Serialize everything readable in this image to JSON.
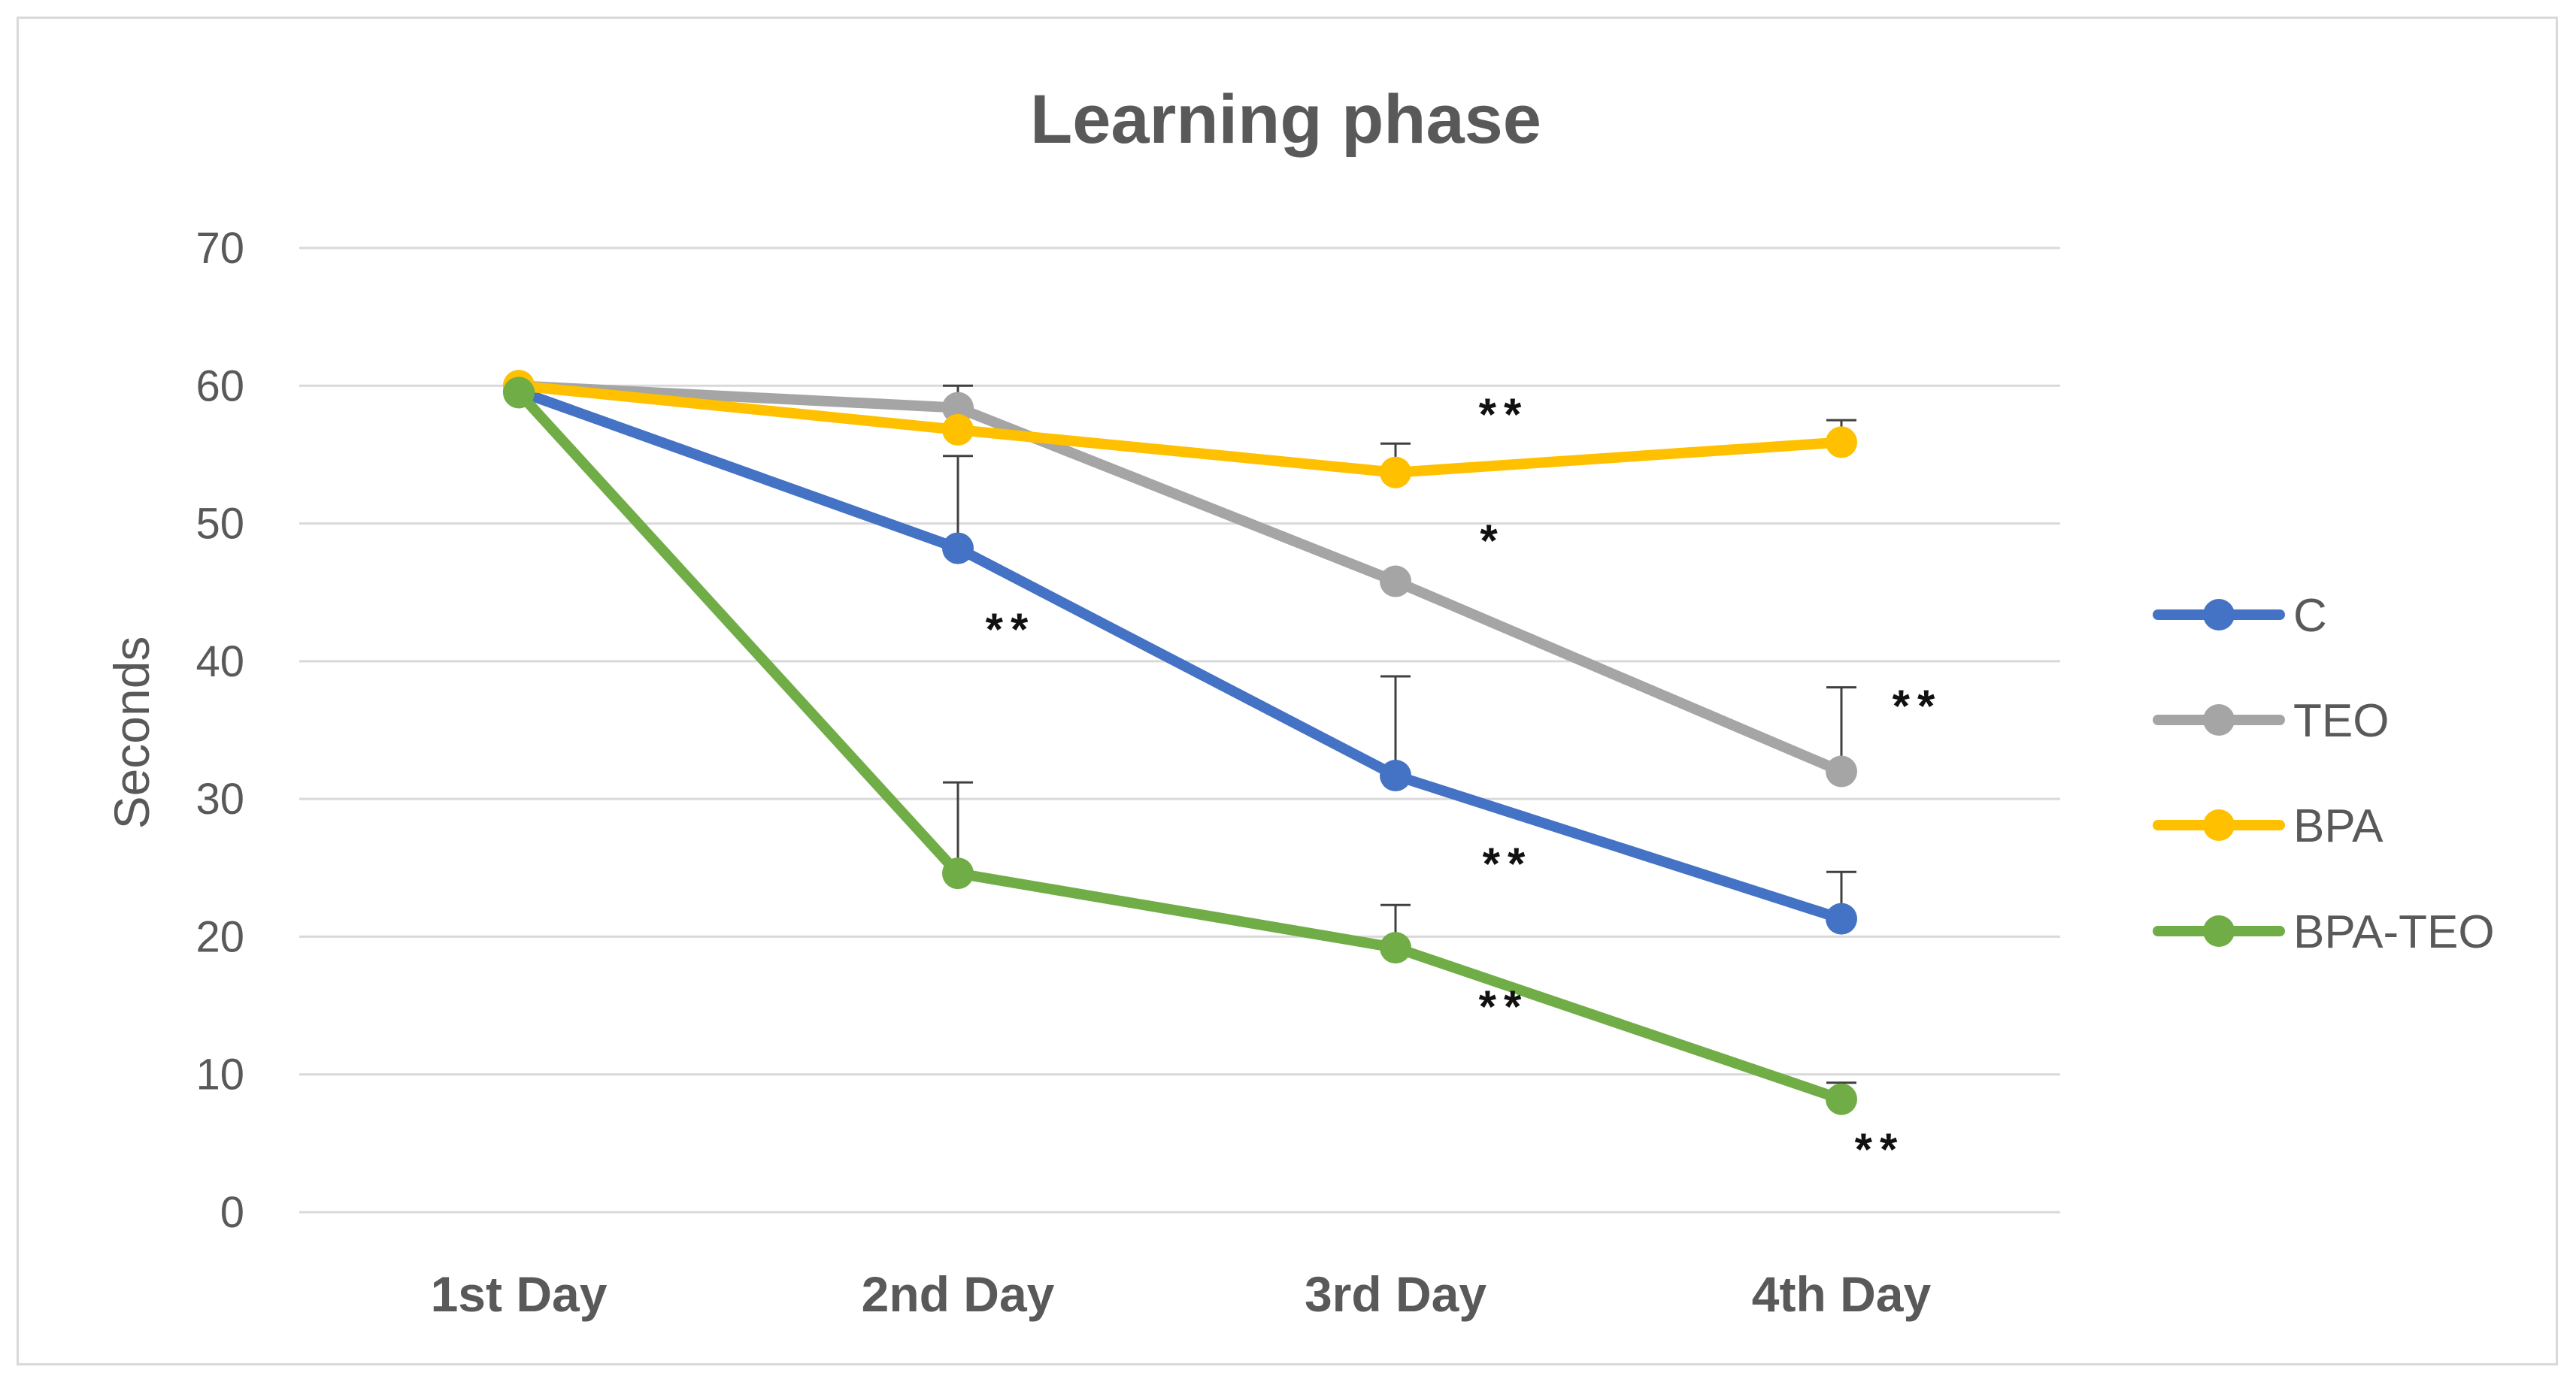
{
  "chart_data": {
    "type": "line",
    "title": "Learning phase",
    "xlabel": "",
    "ylabel": "Seconds",
    "categories": [
      "1st Day",
      "2nd Day",
      "3rd Day",
      "4th Day"
    ],
    "ylim": [
      0,
      70
    ],
    "yticks": [
      "0",
      "10",
      "20",
      "30",
      "40",
      "50",
      "60",
      "70"
    ],
    "grid": true,
    "legend_position": "right",
    "series": [
      {
        "name": "C",
        "color": "#4472c4",
        "values": [
          59.6,
          48.2,
          31.7,
          21.3
        ],
        "errors": [
          0.5,
          6.7,
          7.2,
          3.4
        ]
      },
      {
        "name": "TEO",
        "color": "#a5a5a5",
        "values": [
          60,
          58.4,
          45.8,
          32
        ],
        "errors": [
          0,
          1.6,
          0,
          6.1
        ]
      },
      {
        "name": "BPA",
        "color": "#ffc000",
        "values": [
          60,
          56.8,
          53.7,
          55.9
        ],
        "errors": [
          0,
          0,
          2.1,
          1.6
        ]
      },
      {
        "name": "BPA-TEO",
        "color": "#70ad47",
        "values": [
          59.5,
          24.6,
          19.2,
          8.2
        ],
        "errors": [
          0.5,
          6.6,
          3.1,
          1.2
        ]
      }
    ],
    "annotations": [
      {
        "text": "**",
        "near": "C, 2nd Day, below"
      },
      {
        "text": "**",
        "near": "BPA, 3rd Day, above"
      },
      {
        "text": "*",
        "near": "TEO, 3rd Day, right"
      },
      {
        "text": "**",
        "near": "C, 3rd Day, below"
      },
      {
        "text": "**",
        "near": "BPA-TEO, 3rd Day, below"
      },
      {
        "text": "**",
        "near": "TEO, 4th Day, right"
      },
      {
        "text": "**",
        "near": "BPA-TEO, 4th Day, below"
      }
    ]
  }
}
